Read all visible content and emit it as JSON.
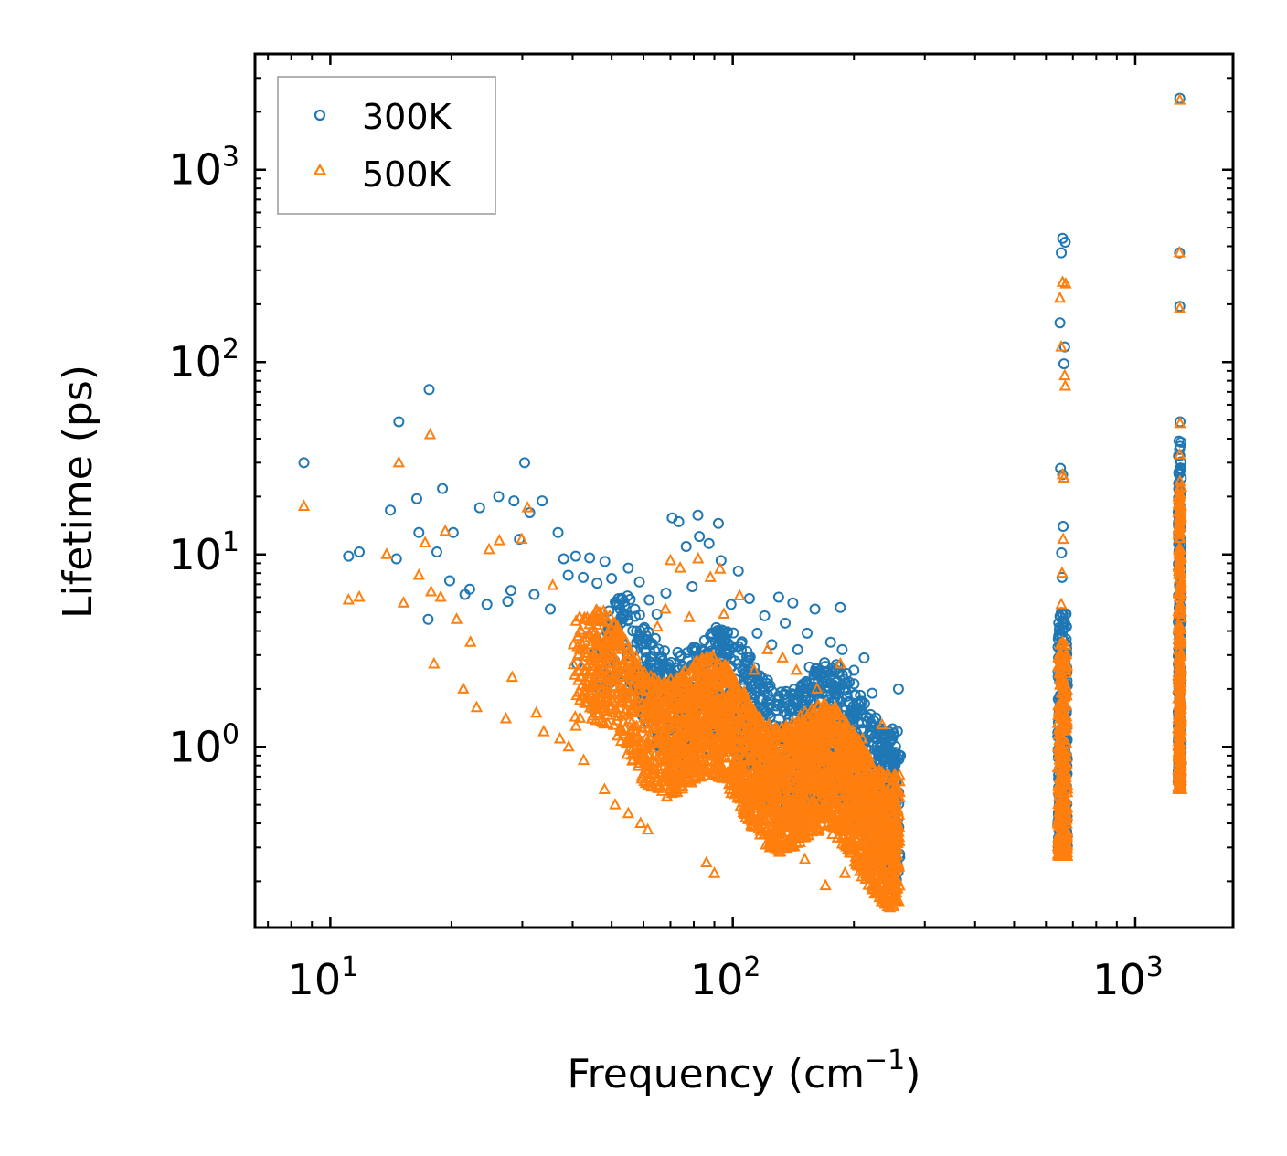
{
  "chart_data": {
    "type": "scatter",
    "title": "",
    "xlabel": "Frequency (cm",
    "xlabel_sup": "−1",
    "xlabel_end": ")",
    "ylabel": "Lifetime (ps)",
    "xscale": "log",
    "yscale": "log",
    "xlim": [
      6.5,
      1750
    ],
    "ylim": [
      0.115,
      4000
    ],
    "xticks": [
      {
        "value": 10,
        "base": "10",
        "exp": "1"
      },
      {
        "value": 100,
        "base": "10",
        "exp": "2"
      },
      {
        "value": 1000,
        "base": "10",
        "exp": "3"
      }
    ],
    "yticks": [
      {
        "value": 1,
        "base": "10",
        "exp": "0"
      },
      {
        "value": 10,
        "base": "10",
        "exp": "1"
      },
      {
        "value": 100,
        "base": "10",
        "exp": "2"
      },
      {
        "value": 1000,
        "base": "10",
        "exp": "3"
      }
    ],
    "legend_position": "top-left",
    "series": [
      {
        "name": "300K",
        "color": "#1f77b4",
        "marker": "circle",
        "points": [
          [
            8.6,
            30
          ],
          [
            11.1,
            9.8
          ],
          [
            11.8,
            10.3
          ],
          [
            14.1,
            17
          ],
          [
            14.8,
            49
          ],
          [
            14.6,
            9.5
          ],
          [
            16.4,
            19.5
          ],
          [
            16.6,
            13
          ],
          [
            17.6,
            72
          ],
          [
            17.5,
            4.6
          ],
          [
            18.4,
            10.3
          ],
          [
            19.0,
            22
          ],
          [
            20.2,
            13
          ],
          [
            19.8,
            7.3
          ],
          [
            21.6,
            6.2
          ],
          [
            22.2,
            6.6
          ],
          [
            23.5,
            17.5
          ],
          [
            24.5,
            5.5
          ],
          [
            26.2,
            20
          ],
          [
            27.6,
            5.7
          ],
          [
            28.1,
            6.5
          ],
          [
            28.6,
            19
          ],
          [
            29.5,
            12
          ],
          [
            30.4,
            30
          ],
          [
            31.3,
            16.5
          ],
          [
            32.1,
            6.2
          ],
          [
            33.6,
            19
          ],
          [
            35.2,
            5.2
          ],
          [
            36.8,
            13
          ],
          [
            38.0,
            9.5
          ],
          [
            39.0,
            7.8
          ],
          [
            40.7,
            9.8
          ],
          [
            42.5,
            7.6
          ],
          [
            44.1,
            9.6
          ],
          [
            46.0,
            7.1
          ],
          [
            48.1,
            9.2
          ],
          [
            50.0,
            7.5
          ],
          [
            52.0,
            5.9
          ],
          [
            55.0,
            8.5
          ],
          [
            58.6,
            7.2
          ],
          [
            62.0,
            5.8
          ],
          [
            64.8,
            4.9
          ],
          [
            68.2,
            6.3
          ],
          [
            70.7,
            15.5
          ],
          [
            73.4,
            14.8
          ],
          [
            76.6,
            11
          ],
          [
            79.3,
            6.8
          ],
          [
            81.9,
            16
          ],
          [
            82.6,
            12.4
          ],
          [
            87.3,
            11.4
          ],
          [
            92.1,
            14.5
          ],
          [
            93.5,
            9.3
          ],
          [
            99.0,
            5.5
          ],
          [
            103.2,
            8.2
          ],
          [
            110.0,
            5.9
          ],
          [
            120.0,
            4.8
          ],
          [
            130.0,
            6.0
          ],
          [
            141.0,
            5.6
          ],
          [
            153.0,
            3.9
          ],
          [
            160.0,
            5.2
          ],
          [
            175.0,
            3.5
          ],
          [
            185.0,
            5.3
          ],
          [
            187.0,
            3.2
          ],
          [
            200.0,
            2.5
          ],
          [
            212.0,
            2.9
          ],
          [
            222.0,
            1.9
          ],
          [
            240.0,
            1.1
          ],
          [
            258.0,
            2.0
          ],
          [
            261.0,
            0.9
          ],
          [
            41.0,
            2.7
          ],
          [
            47.0,
            2.2
          ],
          [
            53.0,
            2.4
          ],
          [
            60.0,
            2.0
          ],
          [
            66.0,
            2.6
          ],
          [
            73.0,
            3.1
          ],
          [
            80.0,
            3.3
          ],
          [
            88.0,
            2.9
          ],
          [
            96.0,
            3.6
          ],
          [
            105.0,
            3.2
          ],
          [
            115.0,
            3.9
          ],
          [
            125.0,
            3.4
          ],
          [
            135.0,
            4.4
          ],
          [
            145.0,
            3.2
          ],
          [
            155.0,
            2.6
          ],
          [
            165.0,
            2.5
          ],
          [
            178.0,
            2.1
          ],
          [
            193.0,
            1.7
          ],
          [
            204.0,
            1.45
          ],
          [
            216.0,
            1.35
          ],
          [
            231.0,
            1.25
          ],
          [
            246.0,
            0.95
          ],
          [
            255.0,
            0.65
          ],
          [
            660,
            440
          ],
          [
            655,
            370
          ],
          [
            670,
            420
          ],
          [
            650,
            160
          ],
          [
            668,
            120
          ],
          [
            665,
            98
          ],
          [
            652,
            28
          ],
          [
            660,
            26
          ],
          [
            662,
            14
          ],
          [
            656,
            10.2
          ],
          [
            658,
            7.6
          ],
          [
            655,
            5.0
          ],
          [
            660,
            4.0
          ],
          [
            663,
            3.0
          ],
          [
            657,
            2.2
          ],
          [
            661,
            1.6
          ],
          [
            1290,
            2350
          ],
          [
            1288,
            370
          ],
          [
            1290,
            195
          ],
          [
            1292,
            49
          ],
          [
            1289,
            27
          ],
          [
            1291,
            18
          ],
          [
            1290,
            12
          ],
          [
            1293,
            9.0
          ]
        ]
      },
      {
        "name": "500K",
        "color": "#ff7f0e",
        "marker": "triangle",
        "points": [
          [
            8.6,
            17.8
          ],
          [
            11.1,
            5.8
          ],
          [
            11.8,
            6.0
          ],
          [
            13.8,
            10
          ],
          [
            14.8,
            30
          ],
          [
            15.2,
            5.6
          ],
          [
            16.6,
            7.8
          ],
          [
            17.2,
            11.5
          ],
          [
            17.7,
            42
          ],
          [
            17.8,
            6.4
          ],
          [
            18.8,
            6.0
          ],
          [
            18.1,
            2.7
          ],
          [
            19.3,
            13.2
          ],
          [
            20.6,
            4.6
          ],
          [
            21.4,
            2.0
          ],
          [
            22.3,
            3.5
          ],
          [
            23.1,
            1.6
          ],
          [
            24.8,
            10.6
          ],
          [
            26.3,
            11.8
          ],
          [
            27.3,
            1.4
          ],
          [
            28.3,
            2.3
          ],
          [
            29.9,
            12
          ],
          [
            30.9,
            17.5
          ],
          [
            32.5,
            1.5
          ],
          [
            33.9,
            1.2
          ],
          [
            35.7,
            6.9
          ],
          [
            37.2,
            1.1
          ],
          [
            39.1,
            1.0
          ],
          [
            40.2,
            3.4
          ],
          [
            42.6,
            0.85
          ],
          [
            45.0,
            3.0
          ],
          [
            48.0,
            0.6
          ],
          [
            51.0,
            0.5
          ],
          [
            55.0,
            0.45
          ],
          [
            59.0,
            0.4
          ],
          [
            61.5,
            0.37
          ],
          [
            65.0,
            4.2
          ],
          [
            68.0,
            5.2
          ],
          [
            70.0,
            9.3
          ],
          [
            74.0,
            8.5
          ],
          [
            78.0,
            4.7
          ],
          [
            82.0,
            9.5
          ],
          [
            86.0,
            0.25
          ],
          [
            88.0,
            7.6
          ],
          [
            90.0,
            0.22
          ],
          [
            93.0,
            8.4
          ],
          [
            95.0,
            4.9
          ],
          [
            104.0,
            6.1
          ],
          [
            113.0,
            2.5
          ],
          [
            122.0,
            3.2
          ],
          [
            133.0,
            2.9
          ],
          [
            144.0,
            2.5
          ],
          [
            151.0,
            0.26
          ],
          [
            162.0,
            2.0
          ],
          [
            170.0,
            0.19
          ],
          [
            185.0,
            2.7
          ],
          [
            190.0,
            0.22
          ],
          [
            210.0,
            1.1
          ],
          [
            220.0,
            0.21
          ],
          [
            235.0,
            1.3
          ],
          [
            257.0,
            0.25
          ],
          [
            660,
            260
          ],
          [
            650,
            215
          ],
          [
            672,
            255
          ],
          [
            655,
            120
          ],
          [
            668,
            85
          ],
          [
            670,
            75
          ],
          [
            660,
            26
          ],
          [
            665,
            25
          ],
          [
            662,
            12
          ],
          [
            658,
            8.0
          ],
          [
            655,
            5.5
          ],
          [
            660,
            3.5
          ],
          [
            663,
            2.2
          ],
          [
            657,
            1.4
          ],
          [
            661,
            0.9
          ],
          [
            659,
            0.5
          ],
          [
            1290,
            2300
          ],
          [
            1288,
            370
          ],
          [
            1290,
            190
          ],
          [
            1292,
            48
          ],
          [
            1289,
            33
          ],
          [
            1291,
            24
          ],
          [
            1290,
            18
          ],
          [
            1293,
            14
          ],
          [
            1289,
            10
          ]
        ],
        "bands": [
          {
            "xmin": 40,
            "xmax": 260,
            "ylow_at_start": 1.5,
            "ylow_at_end": 0.2,
            "yhigh_at_start": 4.8,
            "yhigh_at_end": 0.9,
            "count": 2600
          }
        ]
      }
    ],
    "dense_regions": [
      {
        "series": "300K",
        "xmin": 45,
        "xmax": 260,
        "ylow_at_start": 1.8,
        "ylow_at_end": 0.25,
        "yhigh_at_start": 5.5,
        "yhigh_at_end": 1.6,
        "count": 1500
      },
      {
        "series": "500K",
        "xmin": 40,
        "xmax": 260,
        "ylow_at_start": 1.2,
        "ylow_at_end": 0.18,
        "yhigh_at_start": 4.5,
        "yhigh_at_end": 0.9,
        "count": 3000
      },
      {
        "series": "300K",
        "xcenter": 660,
        "xspread": 0.012,
        "ymin": 0.3,
        "ymax": 5.0,
        "count": 260
      },
      {
        "series": "500K",
        "xcenter": 660,
        "xspread": 0.012,
        "ymin": 0.27,
        "ymax": 3.5,
        "count": 320
      },
      {
        "series": "300K",
        "xcenter": 1290,
        "xspread": 0.004,
        "ymin": 0.65,
        "ymax": 40,
        "count": 220
      },
      {
        "series": "500K",
        "xcenter": 1290,
        "xspread": 0.004,
        "ymin": 0.6,
        "ymax": 24,
        "count": 300
      }
    ]
  }
}
